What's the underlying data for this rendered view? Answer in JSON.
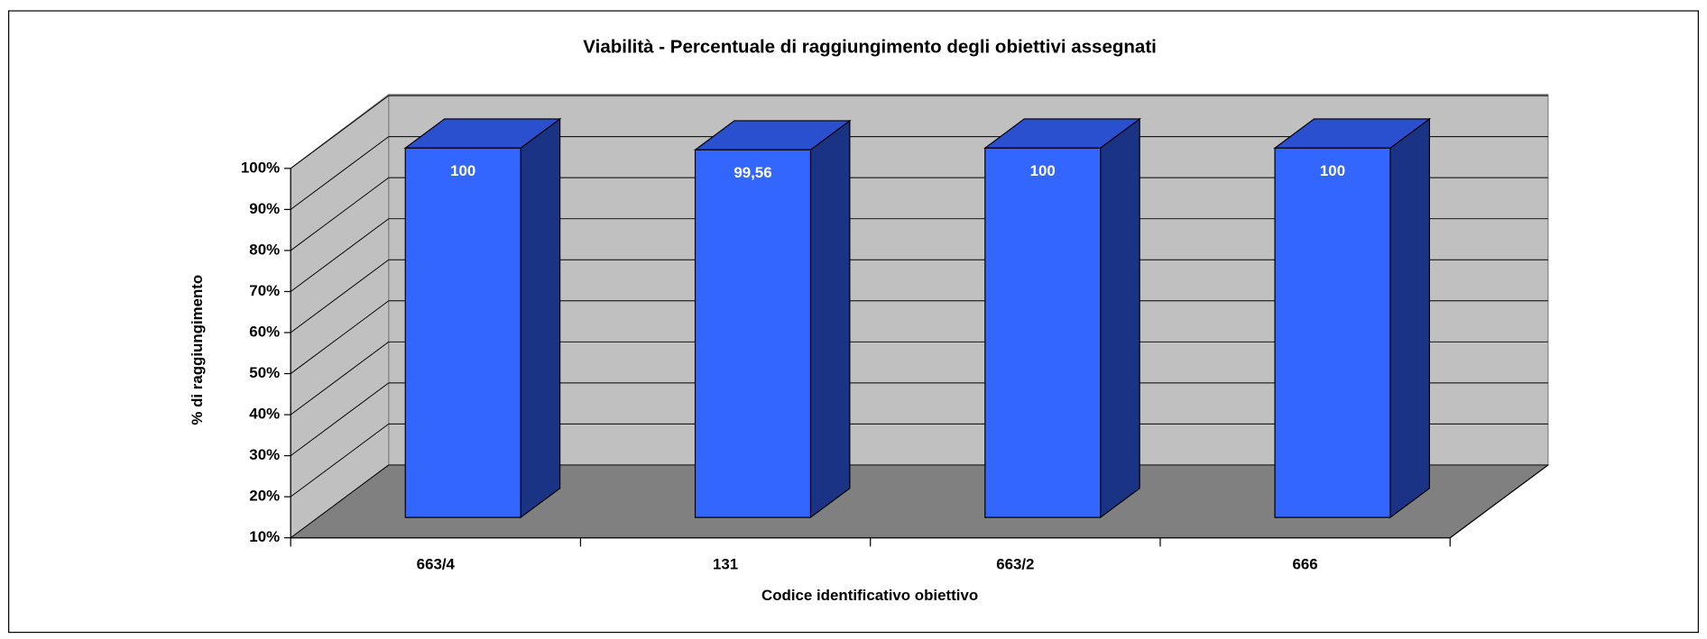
{
  "chart_data": {
    "type": "bar",
    "title": "Viabilità - Percentuale di raggiungimento degli obiettivi assegnati",
    "x_label": "Codice identificativo obiettivo",
    "y_label": "% di raggiungimento",
    "categories": [
      "663/4",
      "131",
      "663/2",
      "666"
    ],
    "values": [
      100,
      99.56,
      100,
      100
    ],
    "value_labels": [
      "100",
      "99,56",
      "100",
      "100"
    ],
    "color": "#3366ff",
    "ylim": [
      10,
      100
    ],
    "yticks": [
      {
        "value": 10,
        "label": "10%"
      },
      {
        "value": 20,
        "label": "20%"
      },
      {
        "value": 30,
        "label": "30%"
      },
      {
        "value": 40,
        "label": "40%"
      },
      {
        "value": 50,
        "label": "50%"
      },
      {
        "value": 60,
        "label": "60%"
      },
      {
        "value": 70,
        "label": "70%"
      },
      {
        "value": 80,
        "label": "80%"
      },
      {
        "value": 90,
        "label": "90%"
      },
      {
        "value": 100,
        "label": "100%"
      }
    ],
    "grid": true
  }
}
